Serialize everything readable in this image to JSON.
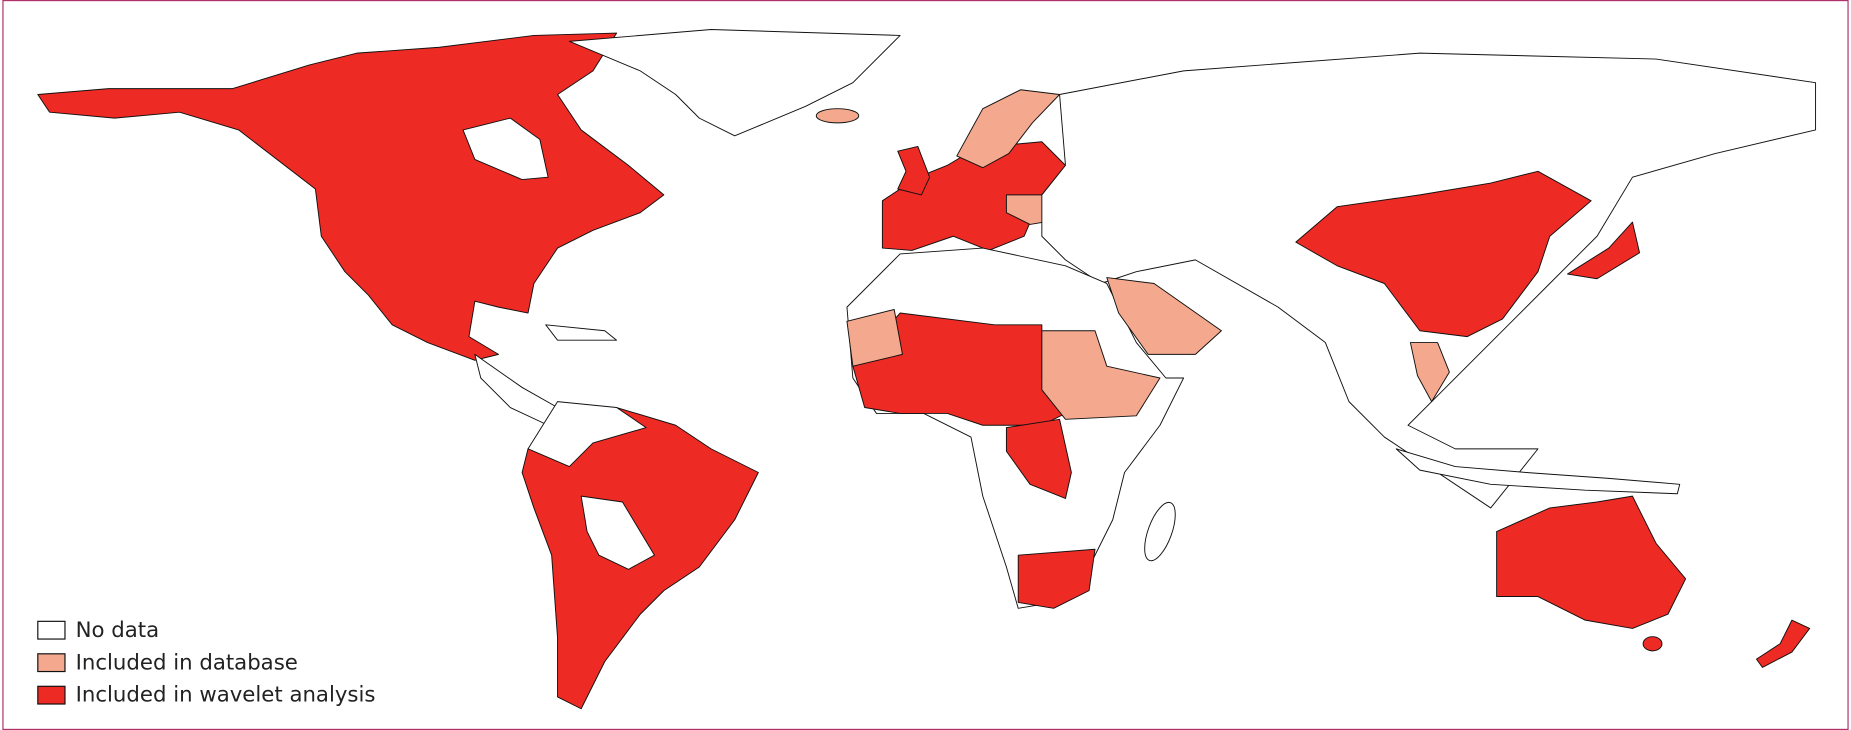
{
  "legend": {
    "items": [
      {
        "label": "No data",
        "color": "#ffffff"
      },
      {
        "label": "Included in database",
        "color": "#f4a98e"
      },
      {
        "label": "Included in wavelet analysis",
        "color": "#ee2a24"
      }
    ]
  }
}
